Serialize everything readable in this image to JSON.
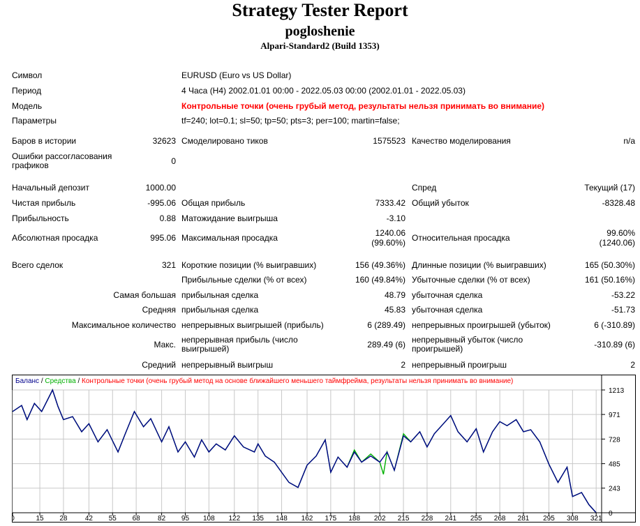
{
  "header": {
    "title": "Strategy Tester Report",
    "expert": "pogloshenie",
    "server": "Alpari-Standard2 (Build 1353)"
  },
  "info": {
    "symbol_label": "Символ",
    "symbol_value": "EURUSD (Euro vs US Dollar)",
    "period_label": "Период",
    "period_value": "4 Часа (H4) 2002.01.01 00:00 - 2022.05.03 00:00 (2002.01.01 - 2022.05.03)",
    "model_label": "Модель",
    "model_value": "Контрольные точки (очень грубый метод, результаты нельзя принимать во внимание)",
    "params_label": "Параметры",
    "params_value": "tf=240; lot=0.1; sl=50; tp=50; pts=3; per=100; martin=false;"
  },
  "stats": {
    "bars_label": "Баров в истории",
    "bars_value": "32623",
    "ticks_label": "Смоделировано тиков",
    "ticks_value": "1575523",
    "quality_label": "Качество моделирования",
    "quality_value": "n/a",
    "mismatch_label": "Ошибки рассогласования графиков",
    "mismatch_value": "0",
    "deposit_label": "Начальный депозит",
    "deposit_value": "1000.00",
    "spread_label": "Спред",
    "spread_value": "Текущий (17)",
    "net_label": "Чистая прибыль",
    "net_value": "-995.06",
    "gross_profit_label": "Общая прибыль",
    "gross_profit_value": "7333.42",
    "gross_loss_label": "Общий убыток",
    "gross_loss_value": "-8328.48",
    "pf_label": "Прибыльность",
    "pf_value": "0.88",
    "payoff_label": "Матожидание выигрыша",
    "payoff_value": "-3.10",
    "abs_dd_label": "Абсолютная просадка",
    "abs_dd_value": "995.06",
    "max_dd_label": "Максимальная просадка",
    "max_dd_value1": "1240.06",
    "max_dd_value2": "(99.60%)",
    "rel_dd_label": "Относительная просадка",
    "rel_dd_value1": "99.60%",
    "rel_dd_value2": "(1240.06)",
    "trades_label": "Всего сделок",
    "trades_value": "321",
    "short_label": "Короткие позиции (% выигравших)",
    "short_value": "156 (49.36%)",
    "long_label": "Длинные позиции (% выигравших)",
    "long_value": "165 (50.30%)",
    "win_label": "Прибыльные сделки (% от всех)",
    "win_value": "160 (49.84%)",
    "loss_label": "Убыточные сделки (% от всех)",
    "loss_value": "161 (50.16%)",
    "largest_label": "Самая большая",
    "largest_win_label": "прибыльная сделка",
    "largest_win_value": "48.79",
    "largest_loss_label": "убыточная сделка",
    "largest_loss_value": "-53.22",
    "avg_label": "Средняя",
    "avg_win_label": "прибыльная сделка",
    "avg_win_value": "45.83",
    "avg_loss_label": "убыточная сделка",
    "avg_loss_value": "-51.73",
    "maxcount_label": "Максимальное количество",
    "cons_wins_label": "непрерывных выигрышей (прибыль)",
    "cons_wins_value": "6 (289.49)",
    "cons_losses_label": "непрерывных проигрышей (убыток)",
    "cons_losses_value": "6 (-310.89)",
    "max_label": "Макс.",
    "cons_profit_label": "непрерывная прибыль (число выигрышей)",
    "cons_profit_value": "289.49 (6)",
    "cons_loss_label": "непрерывный убыток (число проигрышей)",
    "cons_loss_value": "-310.89 (6)",
    "avgcons_label": "Средний",
    "avg_cons_win_label": "непрерывный выигрыш",
    "avg_cons_win_value": "2",
    "avg_cons_loss_label": "непрерывный проигрыш",
    "avg_cons_loss_value": "2"
  },
  "chart_legend": {
    "balance": "Баланс",
    "sep1": " / ",
    "equity": "Средства",
    "sep2": " / ",
    "note": "Контрольные точки (очень грубый метод на основе ближайшего меньшего таймфрейма, результаты нельзя принимать во внимание)"
  },
  "colors": {
    "balance": "#00008b",
    "equity": "#00b000",
    "warning": "#ff0000",
    "grid": "#c8c8c8"
  },
  "chart_data": {
    "type": "line",
    "xlabel": "",
    "ylabel": "",
    "x_ticks": [
      "0",
      "15",
      "28",
      "42",
      "55",
      "68",
      "82",
      "95",
      "108",
      "122",
      "135",
      "148",
      "162",
      "175",
      "188",
      "202",
      "215",
      "228",
      "241",
      "255",
      "268",
      "281",
      "295",
      "308",
      "321"
    ],
    "y_ticks": [
      "1213",
      "971",
      "728",
      "485",
      "243",
      "0"
    ],
    "xlim": [
      0,
      324
    ],
    "ylim": [
      0,
      1213
    ],
    "series": [
      {
        "name": "Баланс",
        "x": [
          0,
          5,
          8,
          12,
          16,
          22,
          25,
          28,
          33,
          38,
          42,
          47,
          52,
          55,
          58,
          62,
          67,
          72,
          76,
          82,
          86,
          91,
          95,
          100,
          104,
          108,
          112,
          117,
          122,
          127,
          133,
          135,
          139,
          144,
          148,
          152,
          157,
          162,
          167,
          172,
          175,
          179,
          184,
          188,
          192,
          197,
          202,
          206,
          210,
          215,
          219,
          224,
          228,
          232,
          237,
          241,
          245,
          250,
          255,
          259,
          264,
          268,
          272,
          277,
          281,
          285,
          290,
          295,
          300,
          305,
          308,
          313,
          317,
          321
        ],
        "y": [
          1000,
          1060,
          920,
          1080,
          1000,
          1213,
          1050,
          920,
          950,
          800,
          880,
          700,
          820,
          710,
          600,
          780,
          1000,
          850,
          930,
          700,
          850,
          600,
          700,
          550,
          720,
          600,
          680,
          620,
          760,
          650,
          600,
          680,
          560,
          500,
          400,
          300,
          250,
          470,
          560,
          720,
          400,
          550,
          450,
          600,
          500,
          560,
          500,
          600,
          420,
          760,
          700,
          800,
          650,
          780,
          880,
          960,
          800,
          700,
          830,
          600,
          800,
          900,
          860,
          920,
          800,
          820,
          700,
          480,
          300,
          450,
          160,
          200,
          80,
          0
        ]
      },
      {
        "name": "Средства",
        "x": [
          0,
          5,
          8,
          12,
          16,
          22,
          25,
          28,
          33,
          38,
          42,
          47,
          52,
          55,
          58,
          62,
          67,
          72,
          76,
          82,
          86,
          91,
          95,
          100,
          104,
          108,
          112,
          117,
          122,
          127,
          133,
          135,
          139,
          144,
          148,
          152,
          157,
          162,
          167,
          172,
          175,
          179,
          184,
          188,
          192,
          197,
          202,
          204,
          206,
          210,
          215,
          219,
          224,
          228,
          232,
          237,
          241,
          245,
          250,
          255,
          259,
          264,
          268,
          272,
          277,
          281,
          285,
          290,
          295,
          300,
          305,
          308,
          313,
          317,
          321
        ],
        "y": [
          1000,
          1060,
          920,
          1080,
          1000,
          1213,
          1050,
          920,
          950,
          800,
          880,
          700,
          820,
          710,
          600,
          780,
          1000,
          850,
          930,
          700,
          850,
          600,
          700,
          550,
          720,
          600,
          680,
          620,
          760,
          650,
          600,
          680,
          560,
          500,
          400,
          300,
          250,
          470,
          560,
          720,
          400,
          550,
          450,
          620,
          500,
          580,
          500,
          380,
          600,
          420,
          780,
          700,
          800,
          650,
          780,
          880,
          960,
          800,
          700,
          830,
          600,
          800,
          900,
          860,
          920,
          800,
          820,
          700,
          480,
          300,
          450,
          160,
          200,
          80,
          0
        ]
      }
    ]
  }
}
